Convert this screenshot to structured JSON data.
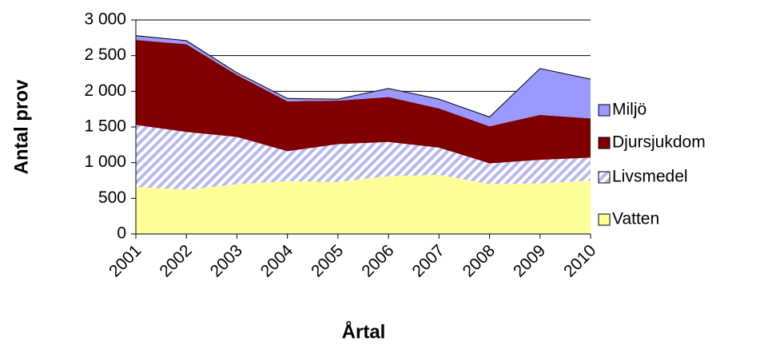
{
  "chart_data": {
    "type": "stacked-area",
    "x_label": "Årtal",
    "y_label": "Antal prov",
    "categories": [
      "2001",
      "2002",
      "2003",
      "2004",
      "2005",
      "2006",
      "2007",
      "2008",
      "2009",
      "2010"
    ],
    "series": [
      {
        "name": "Vatten",
        "color": "#ffff99",
        "values": [
          660,
          620,
          700,
          740,
          730,
          810,
          830,
          700,
          710,
          750
        ]
      },
      {
        "name": "Livsmedel",
        "color": "#ccccff",
        "hatch": true,
        "values": [
          870,
          810,
          660,
          420,
          530,
          480,
          380,
          290,
          330,
          320
        ]
      },
      {
        "name": "Djursjukdom",
        "color": "#800000",
        "values": [
          1190,
          1230,
          870,
          700,
          610,
          630,
          550,
          520,
          630,
          550
        ]
      },
      {
        "name": "Miljö",
        "color": "#9999ff",
        "values": [
          60,
          50,
          30,
          40,
          20,
          120,
          130,
          130,
          650,
          550
        ]
      }
    ],
    "ylim": [
      0,
      3000
    ],
    "yticks": [
      0,
      500,
      {
        "value": 1000,
        "label": "1 000"
      },
      {
        "value": 1500,
        "label": "1 500"
      },
      {
        "value": 2000,
        "label": "2 000"
      },
      {
        "value": 2500,
        "label": "2 500"
      },
      {
        "value": 3000,
        "label": "3 000"
      }
    ],
    "grid": true,
    "legend": "right"
  }
}
